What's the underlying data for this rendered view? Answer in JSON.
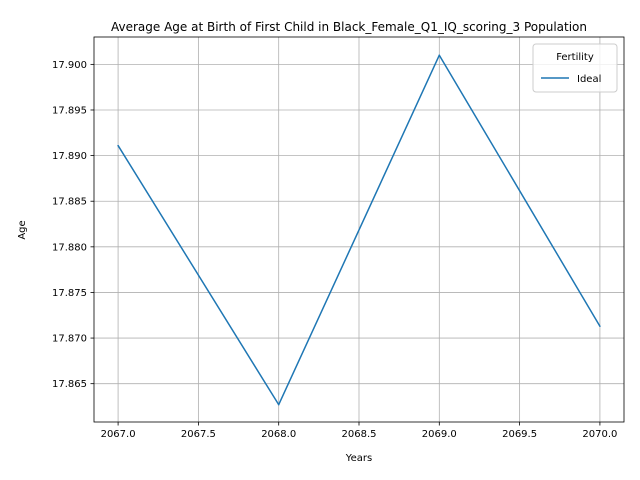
{
  "chart_data": {
    "type": "line",
    "title": "Average Age at Birth of First Child in Black_Female_Q1_IQ_scoring_3 Population",
    "xlabel": "Years",
    "ylabel": "Age",
    "x": [
      2067,
      2068,
      2069,
      2070
    ],
    "series": [
      {
        "name": "Ideal",
        "values": [
          17.8911,
          17.8627,
          17.901,
          17.8713
        ],
        "color": "#1f77b4"
      }
    ],
    "xlim": [
      2066.85,
      2070.15
    ],
    "ylim": [
      17.8608,
      17.903
    ],
    "xticks": [
      "2067.0",
      "2067.5",
      "2068.0",
      "2068.5",
      "2069.0",
      "2069.5",
      "2070.0"
    ],
    "yticks": [
      "17.865",
      "17.870",
      "17.875",
      "17.880",
      "17.885",
      "17.890",
      "17.895",
      "17.900"
    ],
    "grid": true,
    "legend": {
      "title": "Fertility",
      "position": "top-right"
    }
  }
}
